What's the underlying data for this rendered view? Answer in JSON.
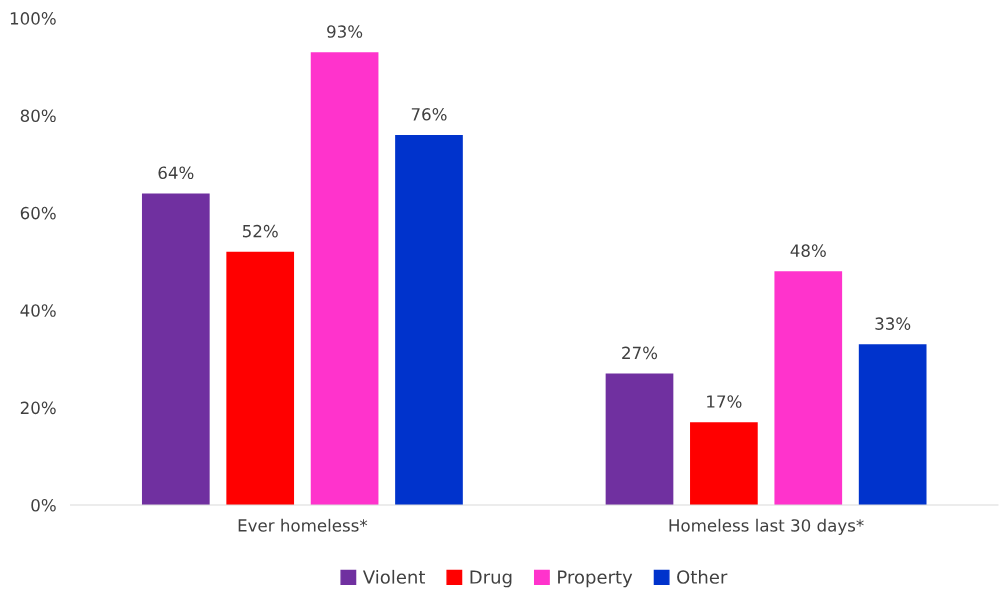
{
  "chart_data": {
    "type": "bar",
    "categories": [
      "Ever homeless*",
      "Homeless last 30 days*"
    ],
    "series": [
      {
        "name": "Violent",
        "color": "#7030a0",
        "values": [
          64,
          27
        ],
        "value_labels": [
          "64%",
          "27%"
        ]
      },
      {
        "name": "Drug",
        "color": "#ff0000",
        "values": [
          52,
          17
        ],
        "value_labels": [
          "52%",
          "17%"
        ]
      },
      {
        "name": "Property",
        "color": "#ff33cc",
        "values": [
          93,
          48
        ],
        "value_labels": [
          "93%",
          "48%"
        ]
      },
      {
        "name": "Other",
        "color": "#0033cc",
        "values": [
          76,
          33
        ],
        "value_labels": [
          "76%",
          "33%"
        ]
      }
    ],
    "ylim": [
      0,
      100
    ],
    "yticks": [
      {
        "value": 0,
        "label": "0%"
      },
      {
        "value": 20,
        "label": "20%"
      },
      {
        "value": 40,
        "label": "40%"
      },
      {
        "value": 60,
        "label": "60%"
      },
      {
        "value": 80,
        "label": "80%"
      },
      {
        "value": 100,
        "label": "100%"
      }
    ],
    "legend": "bottom"
  }
}
